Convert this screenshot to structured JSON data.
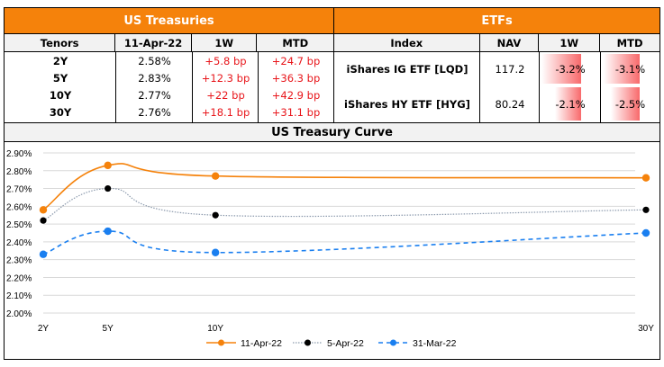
{
  "treasuries": {
    "title": "US Treasuries",
    "headers": [
      "Tenors",
      "11-Apr-22",
      "1W",
      "MTD"
    ],
    "rows": [
      {
        "tenor": "2Y",
        "yield": "2.58%",
        "w1": "+5.8 bp",
        "mtd": "+24.7 bp"
      },
      {
        "tenor": "5Y",
        "yield": "2.83%",
        "w1": "+12.3 bp",
        "mtd": "+36.3 bp"
      },
      {
        "tenor": "10Y",
        "yield": "2.77%",
        "w1": "+22 bp",
        "mtd": "+42.9 bp"
      },
      {
        "tenor": "30Y",
        "yield": "2.76%",
        "w1": "+18.1 bp",
        "mtd": "+31.1 bp"
      }
    ]
  },
  "etfs": {
    "title": "ETFs",
    "headers": [
      "Index",
      "NAV",
      "1W",
      "MTD"
    ],
    "rows": [
      {
        "index": "iShares IG ETF [LQD]",
        "nav": "117.2",
        "w1": "-3.2%",
        "mtd": "-3.1%",
        "w1_val": -3.2,
        "mtd_val": -3.1
      },
      {
        "index": "iShares HY ETF [HYG]",
        "nav": "80.24",
        "w1": "-2.1%",
        "mtd": "-2.5%",
        "w1_val": -2.1,
        "mtd_val": -2.5
      }
    ]
  },
  "colors": {
    "accent": "#f5820b",
    "negative_bar": "#f8696b",
    "positive_text": "#e8161b"
  },
  "chart_data": {
    "type": "line",
    "title": "US Treasury Curve",
    "x": [
      "2Y",
      "5Y",
      "10Y",
      "30Y"
    ],
    "x_years": [
      2,
      5,
      10,
      30
    ],
    "ylim": [
      2.0,
      2.9
    ],
    "yticks": [
      "2.00%",
      "2.10%",
      "2.20%",
      "2.30%",
      "2.40%",
      "2.50%",
      "2.60%",
      "2.70%",
      "2.80%",
      "2.90%"
    ],
    "grid": true,
    "legend": "bottom",
    "series": [
      {
        "name": "11-Apr-22",
        "values": [
          2.58,
          2.83,
          2.77,
          2.76
        ],
        "color": "#f5820b",
        "style": "solid"
      },
      {
        "name": "5-Apr-22",
        "values": [
          2.52,
          2.7,
          2.55,
          2.58
        ],
        "color": "#000000",
        "line_color": "#8c9aad",
        "style": "dotted"
      },
      {
        "name": "31-Mar-22",
        "values": [
          2.33,
          2.46,
          2.34,
          2.45
        ],
        "color": "#1a7ff0",
        "style": "dashed"
      }
    ]
  }
}
